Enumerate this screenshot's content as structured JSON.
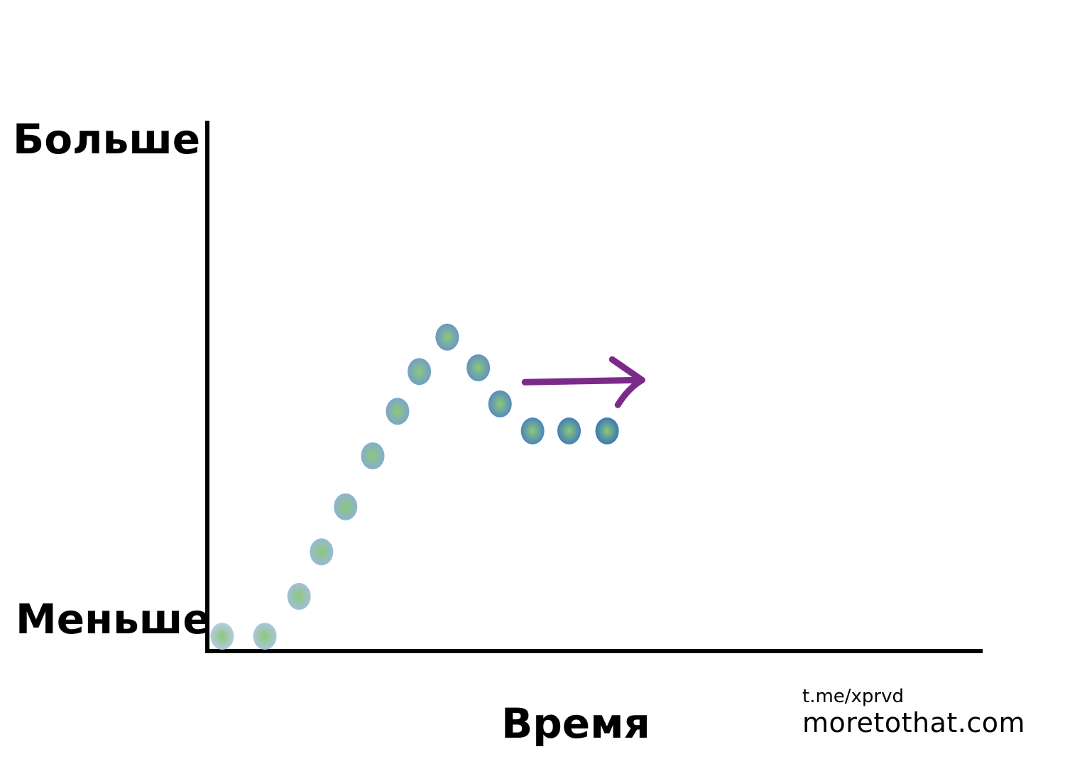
{
  "chart_data": {
    "type": "scatter",
    "title": "",
    "xlabel": "Время",
    "ylabel_top": "Больше",
    "ylabel_bottom": "Меньше",
    "xlim": [
      0,
      100
    ],
    "ylim": [
      0,
      100
    ],
    "grid": false,
    "points": [
      {
        "x": 2.1,
        "y": 2.8
      },
      {
        "x": 7.6,
        "y": 2.8
      },
      {
        "x": 12.0,
        "y": 10.3
      },
      {
        "x": 14.9,
        "y": 18.7
      },
      {
        "x": 18.0,
        "y": 27.2
      },
      {
        "x": 21.5,
        "y": 36.8
      },
      {
        "x": 24.7,
        "y": 45.2
      },
      {
        "x": 27.5,
        "y": 52.7
      },
      {
        "x": 31.1,
        "y": 59.2
      },
      {
        "x": 35.1,
        "y": 53.4
      },
      {
        "x": 37.9,
        "y": 46.6
      },
      {
        "x": 42.1,
        "y": 41.5
      },
      {
        "x": 46.8,
        "y": 41.5
      },
      {
        "x": 51.7,
        "y": 41.5
      }
    ],
    "annotation": {
      "type": "arrow",
      "direction": "right",
      "from": {
        "x": 41.1,
        "y": 50.7
      },
      "to": {
        "x": 56.2,
        "y": 51.1
      }
    },
    "colors": {
      "axis": "#000000",
      "arrow": "#7b2a8a",
      "dot_center": "#8cc878",
      "dot_edge_start": "#b4cce0",
      "dot_edge_end": "#3a78b4"
    }
  },
  "credits": {
    "telegram": "t.me/xprvd",
    "site": "moretothat.com"
  }
}
